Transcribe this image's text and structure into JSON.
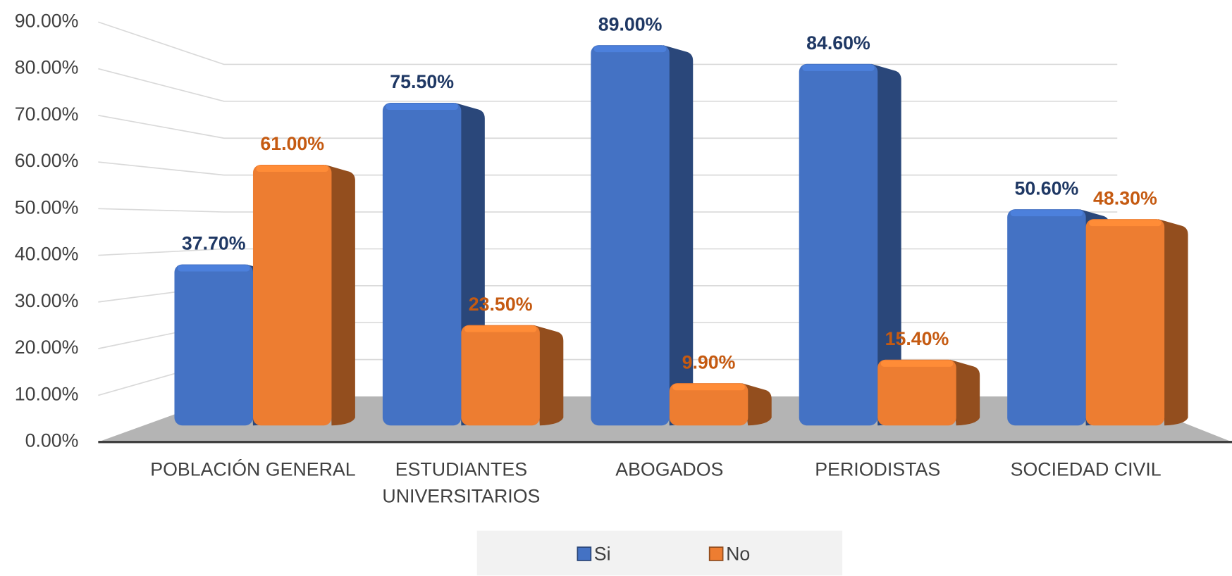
{
  "chart_data": {
    "type": "bar",
    "categories": [
      "POBLACIÓN GENERAL",
      "ESTUDIANTES UNIVERSITARIOS",
      "ABOGADOS",
      "PERIODISTAS",
      "SOCIEDAD CIVIL"
    ],
    "series": [
      {
        "name": "Si",
        "color": "#4472c4",
        "values": [
          37.7,
          75.5,
          89,
          84.6,
          50.6
        ],
        "value_labels": [
          "37.70%",
          "75.50%",
          "89.00%",
          "84.60%",
          "50.60%"
        ]
      },
      {
        "name": "No",
        "color": "#ed7d31",
        "values": [
          61,
          23.5,
          9.9,
          15.4,
          48.3
        ],
        "value_labels": [
          "61.00%",
          "23.50%",
          "9.90%",
          "15.40%",
          "48.30%"
        ]
      }
    ],
    "ylim": [
      0,
      90
    ],
    "yticks": [
      {
        "value": 0,
        "label": "0.00%"
      },
      {
        "value": 10,
        "label": "10.00%"
      },
      {
        "value": 20,
        "label": "20.00%"
      },
      {
        "value": 30,
        "label": "30.00%"
      },
      {
        "value": 40,
        "label": "40.00%"
      },
      {
        "value": 50,
        "label": "50.00%"
      },
      {
        "value": 60,
        "label": "60.00%"
      },
      {
        "value": 70,
        "label": "70.00%"
      },
      {
        "value": 80,
        "label": "80.00%"
      },
      {
        "value": 90,
        "label": "90.00%"
      }
    ],
    "grid": true,
    "legend": "bottom"
  }
}
